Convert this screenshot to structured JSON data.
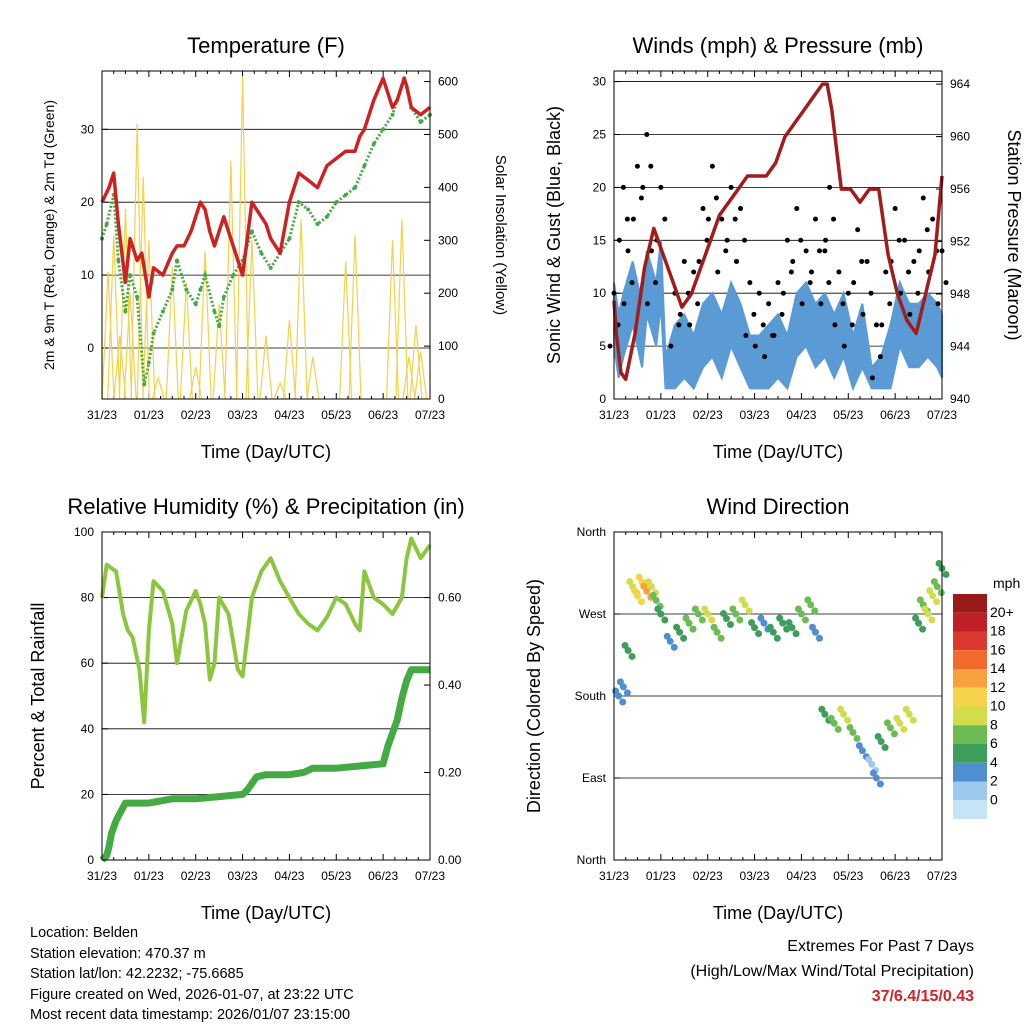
{
  "colors": {
    "temp": "#cc2222",
    "dew": "#44aa44",
    "solar": "#f2d24a",
    "gust": "#000000",
    "wind": "#5b9bd5",
    "pressure": "#a31c1c",
    "rh": "#8cc63f",
    "precip": "#44aa44",
    "extremes": "#d22327"
  },
  "chart_data": [
    {
      "type": "line",
      "title": "Temperature (F)",
      "xlabel": "Time (Day/UTC)",
      "ylabel": "2m & 9m T (Red, Orange) & 2m Td (Green)",
      "ylabel_right": "Solar Insolation (Yellow)",
      "x_ticks": [
        "31/23",
        "01/23",
        "02/23",
        "03/23",
        "04/23",
        "05/23",
        "06/23",
        "07/23"
      ],
      "xlim": [
        0,
        7
      ],
      "ylim": [
        -7,
        38
      ],
      "y_ticks": [
        0,
        10,
        20,
        30
      ],
      "ylim_right": [
        0,
        620
      ],
      "y_ticks_right": [
        0,
        100,
        200,
        300,
        400,
        500,
        600
      ],
      "series": [
        {
          "name": "2m T",
          "style": "line",
          "x": [
            0,
            0.15,
            0.25,
            0.35,
            0.5,
            0.6,
            0.75,
            0.85,
            1.0,
            1.1,
            1.3,
            1.5,
            1.6,
            1.75,
            1.9,
            2.0,
            2.1,
            2.2,
            2.3,
            2.4,
            2.5,
            2.6,
            2.8,
            3.0,
            3.2,
            3.4,
            3.5,
            3.6,
            3.8,
            4.0,
            4.2,
            4.4,
            4.6,
            4.8,
            5.0,
            5.2,
            5.4,
            5.5,
            5.6,
            5.7,
            5.8,
            6.0,
            6.1,
            6.2,
            6.3,
            6.45,
            6.5,
            6.6,
            6.8,
            7.0
          ],
          "y": [
            20,
            22,
            24,
            17,
            9,
            15,
            12,
            13,
            7,
            11,
            10,
            13,
            14,
            14,
            16,
            18,
            20,
            19,
            16,
            14,
            16,
            18,
            14,
            10,
            20,
            18,
            17,
            15,
            13,
            20,
            24,
            23,
            22,
            25,
            26,
            27,
            27,
            29,
            30,
            32,
            34,
            37,
            35,
            33,
            34,
            37,
            36,
            33,
            32,
            33
          ]
        },
        {
          "name": "2m Td",
          "style": "dots",
          "x": [
            0,
            0.1,
            0.25,
            0.35,
            0.5,
            0.6,
            0.75,
            0.9,
            1.0,
            1.1,
            1.3,
            1.5,
            1.6,
            1.8,
            2.0,
            2.1,
            2.2,
            2.4,
            2.5,
            2.6,
            2.8,
            3.0,
            3.2,
            3.4,
            3.6,
            3.8,
            4.0,
            4.2,
            4.4,
            4.6,
            4.8,
            5.0,
            5.2,
            5.4,
            5.6,
            5.8,
            6.0,
            6.2,
            6.3,
            6.45,
            6.6,
            6.8,
            7.0
          ],
          "y": [
            15,
            17,
            21,
            12,
            5,
            10,
            7,
            -5,
            -2,
            2,
            5,
            8,
            12,
            8,
            6,
            8,
            10,
            5,
            3,
            7,
            10,
            12,
            16,
            13,
            11,
            13,
            15,
            20,
            19,
            17,
            18,
            20,
            21,
            22,
            25,
            28,
            30,
            32,
            34,
            37,
            33,
            31,
            32
          ]
        },
        {
          "name": "Solar Insolation",
          "style": "bars",
          "axis": "right",
          "x": [
            0.13,
            0.25,
            0.38,
            0.5,
            0.6,
            0.75,
            0.88,
            1.0,
            1.2,
            1.5,
            1.8,
            2.0,
            2.2,
            2.5,
            2.75,
            3.0,
            3.2,
            3.5,
            3.8,
            4.0,
            4.25,
            4.5,
            5.2,
            5.4,
            6.2,
            6.4,
            6.55,
            6.7,
            6.8
          ],
          "y": [
            240,
            310,
            120,
            360,
            200,
            520,
            420,
            300,
            40,
            250,
            220,
            60,
            280,
            180,
            450,
            610,
            300,
            120,
            30,
            150,
            340,
            80,
            260,
            310,
            300,
            340,
            80,
            140,
            90
          ]
        }
      ]
    },
    {
      "type": "line",
      "title": "Winds (mph) & Pressure (mb)",
      "xlabel": "Time (Day/UTC)",
      "ylabel": "Sonic Wind & Gust (Blue, Black)",
      "ylabel_right": "Station Pressure (Maroon)",
      "x_ticks": [
        "31/23",
        "01/23",
        "02/23",
        "03/23",
        "04/23",
        "05/23",
        "06/23",
        "07/23"
      ],
      "xlim": [
        0,
        7
      ],
      "ylim": [
        0,
        31
      ],
      "y_ticks": [
        0,
        5,
        10,
        15,
        20,
        25,
        30
      ],
      "ylim_right": [
        940,
        965
      ],
      "y_ticks_right": [
        940,
        944,
        948,
        952,
        956,
        960,
        964
      ],
      "series": [
        {
          "name": "Gust",
          "style": "dots",
          "x": [
            0,
            0.2,
            0.3,
            0.5,
            0.7,
            0.8,
            1.0,
            1.3,
            1.5,
            1.7,
            1.9,
            2.1,
            2.3,
            2.5,
            2.7,
            2.9,
            3.1,
            3.3,
            3.5,
            3.7,
            3.9,
            4.1,
            4.3,
            4.5,
            4.6,
            4.8,
            5.0,
            5.2,
            5.4,
            5.6,
            5.8,
            6.0,
            6.2,
            6.4,
            6.6,
            6.8,
            7.0
          ],
          "y": [
            10,
            20,
            14,
            22,
            25,
            14,
            20,
            10,
            13,
            12,
            18,
            22,
            17,
            20,
            18,
            11,
            10,
            9,
            11,
            15,
            18,
            14,
            17,
            14,
            20,
            12,
            10,
            16,
            13,
            7,
            12,
            18,
            15,
            13,
            19,
            17,
            14
          ]
        },
        {
          "name": "Wind",
          "style": "fill",
          "x": [
            0,
            0.1,
            0.2,
            0.4,
            0.6,
            0.7,
            0.9,
            1.0,
            1.1,
            1.3,
            1.5,
            1.7,
            1.9,
            2.1,
            2.3,
            2.5,
            2.7,
            2.9,
            3.1,
            3.3,
            3.5,
            3.7,
            3.9,
            4.1,
            4.3,
            4.5,
            4.7,
            4.9,
            5.1,
            5.3,
            5.5,
            5.7,
            5.9,
            6.1,
            6.3,
            6.5,
            6.7,
            6.9,
            7.0
          ],
          "y": [
            11,
            8,
            10,
            13,
            9,
            14,
            11,
            15,
            4,
            7,
            8,
            6,
            9,
            10,
            8,
            11,
            9,
            6,
            6,
            7,
            8,
            6,
            10,
            11,
            9,
            10,
            8,
            10,
            6,
            9,
            3,
            4,
            7,
            11,
            9,
            9,
            10,
            9,
            8
          ]
        },
        {
          "name": "Station Pressure",
          "style": "line",
          "axis": "right",
          "x": [
            0,
            0.05,
            0.15,
            0.25,
            0.45,
            0.65,
            0.85,
            1.05,
            1.25,
            1.45,
            1.65,
            1.85,
            2.05,
            2.25,
            2.45,
            2.65,
            2.85,
            3.05,
            3.25,
            3.45,
            3.65,
            3.85,
            4.05,
            4.25,
            4.45,
            4.55,
            4.65,
            4.85,
            5.05,
            5.25,
            5.45,
            5.65,
            5.85,
            6.05,
            6.25,
            6.45,
            6.65,
            6.85,
            7.0
          ],
          "y": [
            947.5,
            945,
            942,
            941.5,
            945,
            950,
            953,
            951,
            949,
            947,
            948,
            950,
            952,
            954,
            955,
            956,
            957,
            957,
            957,
            958,
            960,
            961,
            962,
            963,
            964,
            964,
            962,
            956,
            956,
            955,
            956,
            956,
            951,
            948,
            946,
            945,
            948,
            951,
            957
          ]
        }
      ]
    },
    {
      "type": "line",
      "title": "Relative Humidity (%) & Precipitation (in)",
      "xlabel": "Time (Day/UTC)",
      "ylabel": "Percent & Total Rainfall",
      "x_ticks": [
        "31/23",
        "01/23",
        "02/23",
        "03/23",
        "04/23",
        "05/23",
        "06/23",
        "07/23"
      ],
      "xlim": [
        0,
        7
      ],
      "ylim": [
        0,
        100
      ],
      "y_ticks": [
        0,
        20,
        40,
        60,
        80,
        100
      ],
      "ylim_right": [
        0,
        0.75
      ],
      "y_ticks_right": [
        "0.00",
        "0.20",
        "0.40",
        "0.60"
      ],
      "series": [
        {
          "name": "Relative Humidity",
          "x": [
            0,
            0.1,
            0.3,
            0.45,
            0.55,
            0.65,
            0.8,
            0.9,
            1.0,
            1.1,
            1.3,
            1.5,
            1.6,
            1.8,
            2.0,
            2.1,
            2.2,
            2.3,
            2.4,
            2.5,
            2.7,
            2.9,
            3.0,
            3.2,
            3.4,
            3.6,
            3.8,
            4.0,
            4.2,
            4.4,
            4.6,
            4.8,
            5.0,
            5.2,
            5.4,
            5.5,
            5.6,
            5.8,
            6.0,
            6.2,
            6.4,
            6.5,
            6.6,
            6.8,
            7.0
          ],
          "y": [
            80,
            90,
            88,
            75,
            70,
            68,
            58,
            42,
            70,
            85,
            82,
            72,
            60,
            76,
            82,
            78,
            72,
            55,
            60,
            80,
            75,
            58,
            56,
            80,
            88,
            92,
            85,
            80,
            75,
            72,
            70,
            74,
            80,
            78,
            72,
            70,
            88,
            80,
            78,
            75,
            80,
            92,
            98,
            92,
            96
          ]
        },
        {
          "name": "Total Precipitation",
          "axis": "right",
          "x": [
            0,
            0.1,
            0.15,
            0.2,
            0.3,
            0.4,
            0.5,
            1.0,
            1.5,
            2.0,
            2.5,
            3.0,
            3.1,
            3.3,
            3.5,
            4.0,
            4.3,
            4.5,
            5.0,
            5.5,
            6.0,
            6.1,
            6.2,
            6.3,
            6.4,
            6.5,
            6.6,
            6.8,
            7.0
          ],
          "y": [
            0,
            0.01,
            0.03,
            0.06,
            0.09,
            0.11,
            0.13,
            0.13,
            0.14,
            0.14,
            0.145,
            0.15,
            0.16,
            0.19,
            0.195,
            0.195,
            0.2,
            0.21,
            0.21,
            0.215,
            0.22,
            0.26,
            0.29,
            0.32,
            0.37,
            0.41,
            0.435,
            0.435,
            0.435
          ]
        }
      ]
    },
    {
      "type": "scatter",
      "title": "Wind Direction",
      "xlabel": "Time (Day/UTC)",
      "ylabel": "Direction (Colored By Speed)",
      "x_ticks": [
        "31/23",
        "01/23",
        "02/23",
        "03/23",
        "04/23",
        "05/23",
        "06/23",
        "07/23"
      ],
      "xlim": [
        0,
        7
      ],
      "ylim": [
        0,
        360
      ],
      "y_ticks": [
        0,
        90,
        180,
        270,
        360
      ],
      "y_tick_labels": [
        "North",
        "East",
        "South",
        "West",
        "North"
      ],
      "colorbar": {
        "title": "mph",
        "labels": [
          "20+",
          "18",
          "16",
          "14",
          "12",
          "10",
          "8",
          "6",
          "4",
          "2",
          "0"
        ],
        "colors": [
          "#9a1a1a",
          "#bf2025",
          "#dd3a2f",
          "#f26b2c",
          "#f9a03f",
          "#f5d34a",
          "#d3dc4a",
          "#6cbb54",
          "#3e9e5c",
          "#4f8fd1",
          "#9ec9ee",
          "#c6e4f6"
        ]
      },
      "series": [
        {
          "name": "Direction",
          "x": [
            0.1,
            0.2,
            0.3,
            0.4,
            0.5,
            0.6,
            0.7,
            0.8,
            0.9,
            1.0,
            1.2,
            1.4,
            1.6,
            1.8,
            2.0,
            2.2,
            2.4,
            2.6,
            2.8,
            3.0,
            3.2,
            3.4,
            3.6,
            3.8,
            4.0,
            4.2,
            4.3,
            4.5,
            4.7,
            4.9,
            5.1,
            5.3,
            5.5,
            5.6,
            5.7,
            5.9,
            6.1,
            6.3,
            6.5,
            6.6,
            6.7,
            6.8,
            6.9,
            7.0
          ],
          "y": [
            180,
            190,
            230,
            300,
            290,
            305,
            295,
            300,
            285,
            270,
            240,
            250,
            260,
            270,
            270,
            250,
            265,
            270,
            280,
            255,
            260,
            250,
            260,
            255,
            270,
            280,
            250,
            160,
            150,
            160,
            140,
            120,
            105,
            90,
            130,
            145,
            150,
            160,
            260,
            280,
            270,
            290,
            300,
            320
          ],
          "speed": [
            3,
            3,
            6,
            9,
            12,
            11,
            13,
            10,
            8,
            5,
            4,
            5,
            7,
            8,
            9,
            7,
            6,
            8,
            9,
            5,
            4,
            6,
            5,
            6,
            8,
            7,
            4,
            6,
            8,
            9,
            7,
            3,
            2,
            4,
            6,
            8,
            9,
            10,
            6,
            7,
            9,
            10,
            8,
            5
          ]
        }
      ]
    }
  ],
  "info": {
    "location": "Location: Belden",
    "elevation": "Station elevation: 470.37 m",
    "latlon": "Station lat/lon: 42.2232; -75.6685",
    "created": "Figure created on Wed, 2026-01-07, at 23:22 UTC",
    "recent": "Most recent data timestamp: 2026/01/07 23:15:00"
  },
  "extremes": {
    "title": "Extremes For Past 7 Days",
    "subtitle": "(High/Low/Max Wind/Total Precipitation)",
    "values": "37/6.4/15/0.43"
  }
}
